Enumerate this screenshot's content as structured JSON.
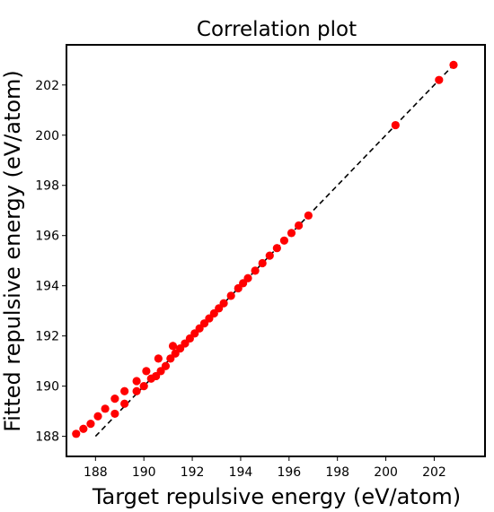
{
  "chart_data": {
    "type": "scatter",
    "title": "Correlation plot",
    "xlabel": "Target repulsive energy (eV/atom)",
    "ylabel": "Fitted repulsive energy (eV/atom)",
    "xlim": [
      186.8,
      204.1
    ],
    "ylim": [
      187.2,
      203.6
    ],
    "xticks": [
      "188",
      "190",
      "192",
      "194",
      "196",
      "198",
      "200",
      "202"
    ],
    "yticks": [
      "188",
      "190",
      "192",
      "194",
      "196",
      "198",
      "200",
      "202"
    ],
    "grid": false,
    "reference_line": {
      "style": "dashed",
      "color": "#000000",
      "from": [
        188.0,
        188.0
      ],
      "to": [
        202.8,
        202.8
      ]
    },
    "series": [
      {
        "marker_color": "#ff0000",
        "points": [
          [
            187.2,
            188.1
          ],
          [
            187.5,
            188.3
          ],
          [
            187.8,
            188.5
          ],
          [
            188.1,
            188.8
          ],
          [
            188.4,
            189.1
          ],
          [
            188.8,
            189.5
          ],
          [
            189.2,
            189.8
          ],
          [
            189.7,
            190.2
          ],
          [
            190.1,
            190.6
          ],
          [
            190.6,
            191.1
          ],
          [
            191.2,
            191.6
          ],
          [
            188.8,
            188.9
          ],
          [
            189.2,
            189.3
          ],
          [
            189.7,
            189.8
          ],
          [
            190.0,
            190.0
          ],
          [
            190.3,
            190.3
          ],
          [
            190.5,
            190.4
          ],
          [
            190.7,
            190.6
          ],
          [
            190.9,
            190.8
          ],
          [
            191.1,
            191.1
          ],
          [
            191.3,
            191.3
          ],
          [
            191.5,
            191.5
          ],
          [
            191.7,
            191.7
          ],
          [
            191.9,
            191.9
          ],
          [
            192.1,
            192.1
          ],
          [
            192.3,
            192.3
          ],
          [
            192.5,
            192.5
          ],
          [
            192.7,
            192.7
          ],
          [
            192.9,
            192.9
          ],
          [
            193.1,
            193.1
          ],
          [
            193.3,
            193.3
          ],
          [
            193.6,
            193.6
          ],
          [
            193.9,
            193.9
          ],
          [
            194.1,
            194.1
          ],
          [
            194.3,
            194.3
          ],
          [
            194.6,
            194.6
          ],
          [
            194.9,
            194.9
          ],
          [
            195.2,
            195.2
          ],
          [
            195.5,
            195.5
          ],
          [
            195.8,
            195.8
          ],
          [
            196.1,
            196.1
          ],
          [
            196.4,
            196.4
          ],
          [
            196.8,
            196.8
          ],
          [
            200.4,
            200.4
          ],
          [
            202.2,
            202.2
          ],
          [
            202.8,
            202.8
          ]
        ]
      }
    ]
  }
}
